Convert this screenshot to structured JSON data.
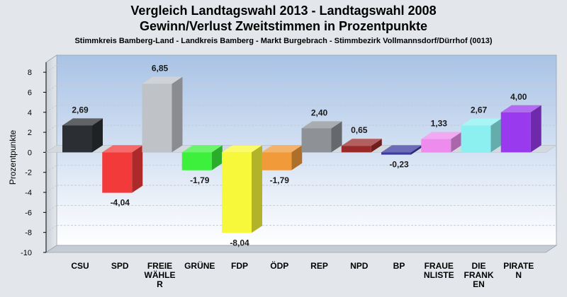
{
  "chart_data": {
    "type": "bar",
    "title": "Vergleich Landtagswahl 2013 - Landtagswahl 2008",
    "subtitle": "Gewinn/Verlust Zweitstimmen in Prozentpunkte",
    "subsubtitle": "Stimmkreis Bamberg-Land - Landkreis Bamberg - Markt Burgebrach - Stimmbezirk Vollmannsdorf/Dürrhof (0013)",
    "ylabel": "Prozentpunkte",
    "xlabel": "",
    "ylim": [
      -10,
      9
    ],
    "yticks": [
      8,
      6,
      4,
      2,
      0,
      -2,
      -4,
      -6,
      -8,
      -10
    ],
    "categories": [
      [
        "CSU"
      ],
      [
        "SPD"
      ],
      [
        "FREIE",
        "WÄHLE",
        "R"
      ],
      [
        "GRÜNE"
      ],
      [
        "FDP"
      ],
      [
        "ÖDP"
      ],
      [
        "REP"
      ],
      [
        "NPD"
      ],
      [
        "BP"
      ],
      [
        "FRAUE",
        "NLISTE"
      ],
      [
        "DIE",
        "FRANK",
        "EN"
      ],
      [
        "PIRATE",
        "N"
      ]
    ],
    "values": [
      2.69,
      -4.04,
      6.85,
      -1.79,
      -8.04,
      -1.79,
      2.4,
      0.65,
      -0.23,
      1.33,
      2.67,
      4.0
    ],
    "value_labels": [
      "2,69",
      "-4,04",
      "6,85",
      "-1,79",
      "-8,04",
      "-1,79",
      "2,40",
      "0,65",
      "-0,23",
      "1,33",
      "2,67",
      "4,00"
    ],
    "colors": [
      "#2b2f33",
      "#f23a3a",
      "#bfc3c8",
      "#3cf03c",
      "#f8f83a",
      "#f09a3a",
      "#8e9296",
      "#9a2a2a",
      "#3a3aa0",
      "#ee8cee",
      "#8cf0f0",
      "#9a3aee"
    ],
    "grid": true,
    "legend": "none"
  }
}
